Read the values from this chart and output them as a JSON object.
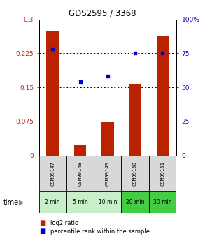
{
  "title": "GDS2595 / 3368",
  "samples": [
    "GSM99147",
    "GSM99148",
    "GSM99149",
    "GSM99150",
    "GSM99151"
  ],
  "times": [
    "2 min",
    "5 min",
    "10 min",
    "20 min",
    "30 min"
  ],
  "log2_ratio": [
    0.275,
    0.022,
    0.075,
    0.158,
    0.262
  ],
  "percentile_rank": [
    78,
    54,
    58,
    75,
    75
  ],
  "left_ylim": [
    0,
    0.3
  ],
  "right_ylim": [
    0,
    100
  ],
  "left_yticks": [
    0,
    0.075,
    0.15,
    0.225,
    0.3
  ],
  "right_yticks": [
    0,
    25,
    50,
    75,
    100
  ],
  "right_yticklabels": [
    "0",
    "25",
    "50",
    "75",
    "100%"
  ],
  "bar_color": "#bb2200",
  "square_color": "#0000cc",
  "bg_color": "#d8d8d8",
  "green_color_light": "#c8f0c8",
  "green_color_dark": "#44cc44",
  "legend_bar_label": "log2 ratio",
  "legend_sq_label": "percentile rank within the sample",
  "time_label": "time"
}
